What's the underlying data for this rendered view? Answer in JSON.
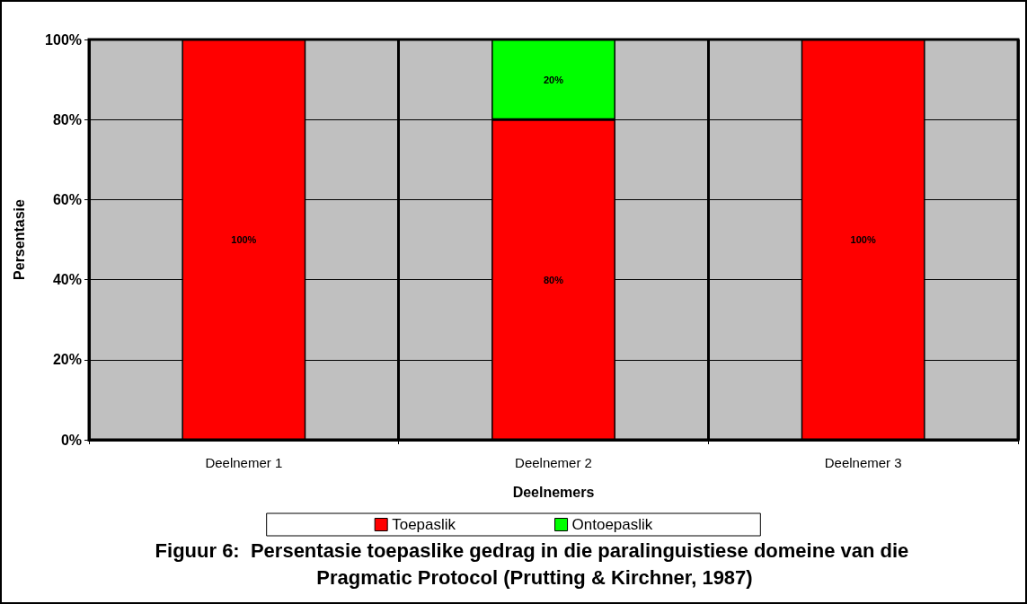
{
  "chart_data": {
    "type": "bar",
    "title": "Figuur 6:  Persentasie toepaslike gedrag in die paralinguistiese domeine van die Pragmatic Protocol (Prutting & Kirchner, 1987)",
    "xlabel": "Deelnemers",
    "ylabel": "Persentasie",
    "categories": [
      "Deelnemer 1",
      "Deelnemer 2",
      "Deelnemer 3"
    ],
    "series": [
      {
        "name": "Toepaslik",
        "color": "#ff0000",
        "values": [
          100,
          80,
          100
        ],
        "value_labels": [
          "100%",
          "80%",
          "100%"
        ]
      },
      {
        "name": "Ontoepaslik",
        "color": "#00ff00",
        "values": [
          0,
          20,
          0
        ],
        "value_labels": [
          null,
          "20%",
          null
        ]
      }
    ],
    "stacked": true,
    "ylim": [
      0,
      100
    ],
    "yticks": [
      {
        "value": 0,
        "label": "0%"
      },
      {
        "value": 20,
        "label": "20%"
      },
      {
        "value": 40,
        "label": "40%"
      },
      {
        "value": 60,
        "label": "60%"
      },
      {
        "value": 80,
        "label": "80%"
      },
      {
        "value": 100,
        "label": "100%"
      }
    ],
    "grid": true,
    "legend": "bottom"
  }
}
